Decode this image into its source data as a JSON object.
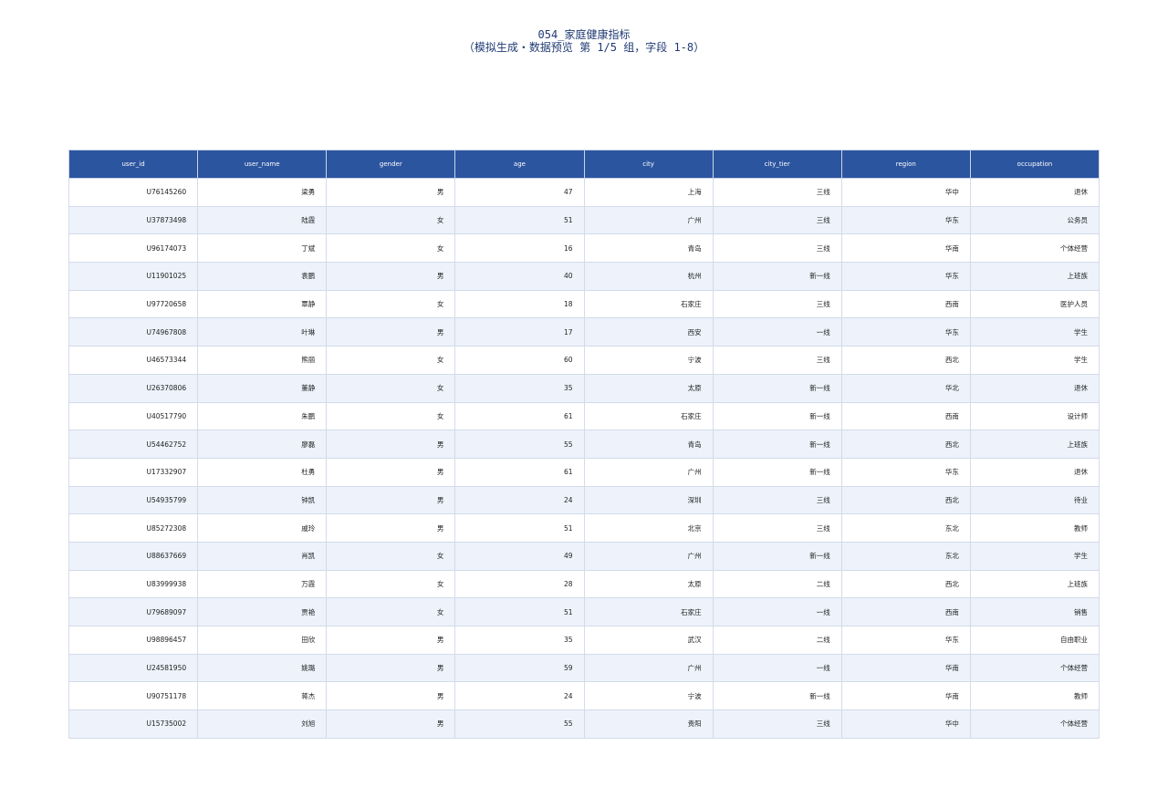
{
  "header": {
    "title": "054_家庭健康指标",
    "subtitle": "（模拟生成・数据预览 第 1/5 组，字段 1-8）"
  },
  "table": {
    "columns": [
      "user_id",
      "user_name",
      "gender",
      "age",
      "city",
      "city_tier",
      "region",
      "occupation"
    ],
    "rows": [
      [
        "U76145260",
        "梁勇",
        "男",
        47,
        "上海",
        "三线",
        "华中",
        "退休"
      ],
      [
        "U37873498",
        "陆霞",
        "女",
        51,
        "广州",
        "三线",
        "华东",
        "公务员"
      ],
      [
        "U96174073",
        "丁斌",
        "女",
        16,
        "青岛",
        "三线",
        "华南",
        "个体经营"
      ],
      [
        "U11901025",
        "袁鹏",
        "男",
        40,
        "杭州",
        "新一线",
        "华东",
        "上班族"
      ],
      [
        "U97720658",
        "覃静",
        "女",
        18,
        "石家庄",
        "三线",
        "西南",
        "医护人员"
      ],
      [
        "U74967808",
        "叶琳",
        "男",
        17,
        "西安",
        "一线",
        "华东",
        "学生"
      ],
      [
        "U46573344",
        "熊丽",
        "女",
        60,
        "宁波",
        "三线",
        "西北",
        "学生"
      ],
      [
        "U26370806",
        "董静",
        "女",
        35,
        "太原",
        "新一线",
        "华北",
        "退休"
      ],
      [
        "U40517790",
        "朱鹏",
        "女",
        61,
        "石家庄",
        "新一线",
        "西南",
        "设计师"
      ],
      [
        "U54462752",
        "廖磊",
        "男",
        55,
        "青岛",
        "新一线",
        "西北",
        "上班族"
      ],
      [
        "U17332907",
        "杜勇",
        "男",
        61,
        "广州",
        "新一线",
        "华东",
        "退休"
      ],
      [
        "U54935799",
        "钟凯",
        "男",
        24,
        "深圳",
        "三线",
        "西北",
        "待业"
      ],
      [
        "U85272308",
        "戚玲",
        "男",
        51,
        "北京",
        "三线",
        "东北",
        "教师"
      ],
      [
        "U88637669",
        "肖凯",
        "女",
        49,
        "广州",
        "新一线",
        "东北",
        "学生"
      ],
      [
        "U83999938",
        "万霞",
        "女",
        28,
        "太原",
        "二线",
        "西北",
        "上班族"
      ],
      [
        "U79689097",
        "贾艳",
        "女",
        51,
        "石家庄",
        "一线",
        "西南",
        "销售"
      ],
      [
        "U98896457",
        "田欣",
        "男",
        35,
        "武汉",
        "二线",
        "华东",
        "自由职业"
      ],
      [
        "U24581950",
        "姚璐",
        "男",
        59,
        "广州",
        "一线",
        "华南",
        "个体经营"
      ],
      [
        "U90751178",
        "蒋杰",
        "男",
        24,
        "宁波",
        "新一线",
        "华南",
        "教师"
      ],
      [
        "U15735002",
        "刘旭",
        "男",
        55,
        "贵阳",
        "三线",
        "华中",
        "个体经营"
      ]
    ]
  }
}
